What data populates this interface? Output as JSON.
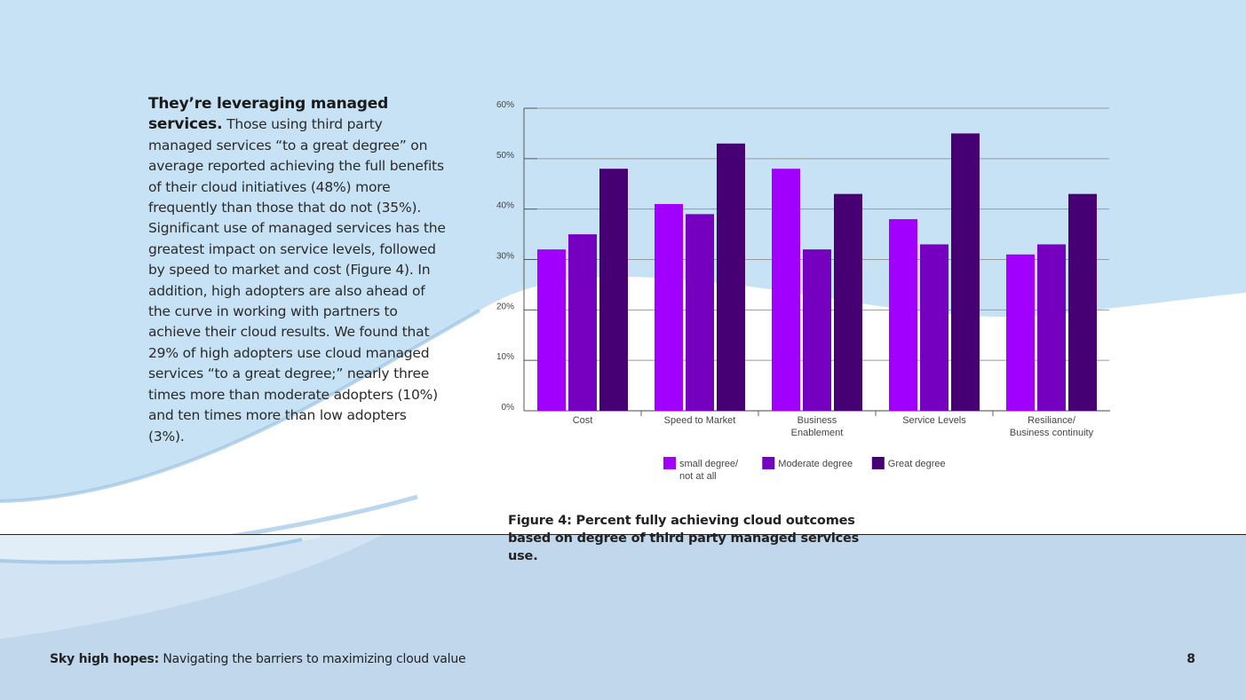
{
  "body": {
    "lead": "They’re leveraging managed services.",
    "text": "Those using third party managed services “to a great degree” on average reported achieving the full benefits of their cloud initiatives (48%) more frequently than those that do not (35%).  Significant use of managed services has the greatest impact on service levels, followed by speed to market and cost (Figure 4).  In addition, high adopters are also ahead of the curve in working with partners to achieve their cloud results. We found that 29% of high adopters use cloud managed services “to a great degree;” nearly three times more than moderate adopters (10%) and ten times more than low adopters (3%)."
  },
  "caption": {
    "line1": "Figure 4: Percent fully achieving cloud outcomes",
    "line2": "based on degree of third party managed services use."
  },
  "footer": {
    "title_bold": "Sky high hopes:",
    "title_rest": "Navigating the barriers to maximizing cloud value",
    "page": "8"
  },
  "chart_data": {
    "type": "bar",
    "categories": [
      [
        "Cost"
      ],
      [
        "Speed to Market"
      ],
      [
        "Business",
        "Enablement"
      ],
      [
        "Service Levels"
      ],
      [
        "Resiliance/",
        "Business continuity"
      ]
    ],
    "series": [
      {
        "name": [
          "small degree/",
          "not at all"
        ],
        "color": "#a100ff",
        "values": [
          32,
          41,
          48,
          38,
          31
        ]
      },
      {
        "name": [
          "Moderate degree"
        ],
        "color": "#7500c0",
        "values": [
          35,
          39,
          32,
          33,
          33
        ]
      },
      {
        "name": [
          "Great degree"
        ],
        "color": "#460073",
        "values": [
          48,
          53,
          43,
          55,
          43
        ]
      }
    ],
    "yticks": [
      "0%",
      "10%",
      "20%",
      "30%",
      "40%",
      "50%",
      "60%"
    ],
    "ylim": [
      0,
      60
    ],
    "grid": true,
    "legend": "bottom"
  }
}
